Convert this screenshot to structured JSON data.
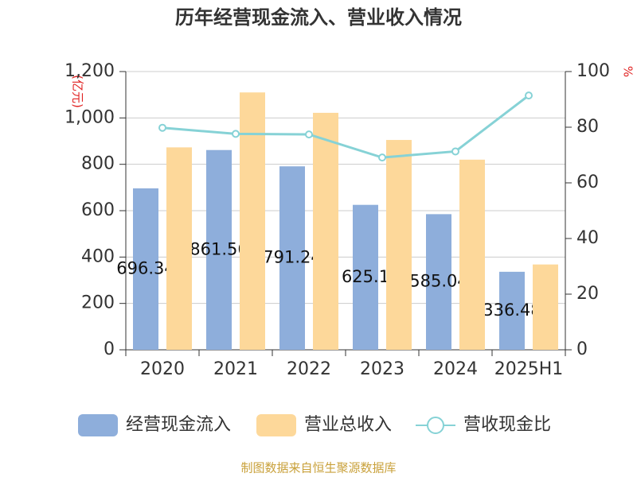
{
  "chart_data": {
    "type": "bar",
    "title": "历年经营现金流入、营业收入情况",
    "y_label": "(亿元)",
    "y2_label": "%",
    "categories": [
      "2020",
      "2021",
      "2022",
      "2023",
      "2024",
      "2025H1"
    ],
    "series": [
      {
        "name": "经营现金流入",
        "color": "#8eaedb",
        "values": [
          696.34,
          861.56,
          791.24,
          625.1,
          585.04,
          336.48
        ]
      },
      {
        "name": "营业总收入",
        "color": "#fdd89a",
        "values": [
          873,
          1110,
          1022,
          905,
          820,
          368
        ]
      },
      {
        "name": "营收现金比",
        "type": "line",
        "axis": "y2",
        "color": "#86d2d6",
        "values": [
          79.8,
          77.6,
          77.4,
          69.1,
          71.3,
          91.4
        ]
      }
    ],
    "ylim": [
      0,
      1200
    ],
    "yticks": [
      0,
      200,
      400,
      600,
      800,
      {
        "value": 1000,
        "label": "1,000"
      },
      {
        "value": 1200,
        "label": "1,200"
      }
    ],
    "y2lim": [
      0,
      100
    ],
    "y2ticks": [
      0,
      20,
      40,
      60,
      80,
      100
    ],
    "grid": true,
    "legend": "bottom",
    "source": "制图数据来自恒生聚源数据库"
  }
}
